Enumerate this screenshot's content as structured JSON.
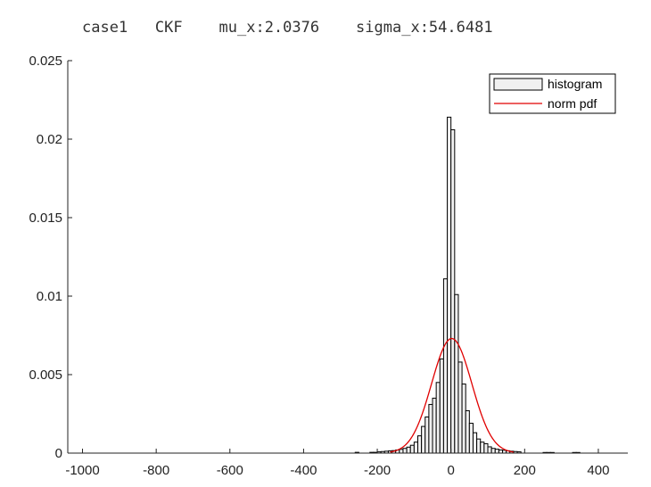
{
  "chart_data": {
    "type": "bar",
    "title": "case1   CKF    mu_x:2.0376    sigma_x:54.6481",
    "xlabel": "",
    "ylabel": "",
    "xlim": [
      -1040,
      480
    ],
    "ylim": [
      0,
      0.025
    ],
    "xticks": [
      -1000,
      -800,
      -600,
      -400,
      -200,
      0,
      200,
      400
    ],
    "xtick_labels": [
      "-1000",
      "-800",
      "-600",
      "-400",
      "-200",
      "0",
      "200",
      "400"
    ],
    "yticks": [
      0,
      0.005,
      0.01,
      0.015,
      0.02,
      0.025
    ],
    "ytick_labels": [
      "0",
      "0.005",
      "0.01",
      "0.015",
      "0.02",
      "0.025"
    ],
    "grid": false,
    "legend": {
      "position": "top-right",
      "entries": [
        "histogram",
        "norm pdf"
      ]
    },
    "bin_width": 10,
    "series": [
      {
        "name": "histogram",
        "type": "bar",
        "bin_centers": [
          -255,
          -215,
          -205,
          -195,
          -185,
          -175,
          -165,
          -155,
          -145,
          -135,
          -125,
          -115,
          -105,
          -95,
          -85,
          -75,
          -65,
          -55,
          -45,
          -35,
          -25,
          -15,
          -5,
          5,
          15,
          25,
          35,
          45,
          55,
          65,
          75,
          85,
          95,
          105,
          115,
          125,
          135,
          145,
          155,
          165,
          175,
          185,
          255,
          265,
          275,
          335,
          345
        ],
        "values": [
          5e-05,
          5e-05,
          5e-05,
          8e-05,
          0.0001,
          0.00012,
          0.00014,
          0.00016,
          0.0002,
          0.00024,
          0.0003,
          0.00038,
          0.0005,
          0.0007,
          0.0011,
          0.0017,
          0.0023,
          0.0031,
          0.0035,
          0.0045,
          0.006,
          0.0111,
          0.0214,
          0.0206,
          0.0101,
          0.0058,
          0.0044,
          0.0027,
          0.0019,
          0.0013,
          0.0009,
          0.0007,
          0.0006,
          0.0004,
          0.0003,
          0.00025,
          0.0002,
          0.00018,
          0.00015,
          0.00012,
          0.0001,
          8e-05,
          4e-05,
          4e-05,
          4e-05,
          4e-05,
          4e-05
        ],
        "color": "#f0f0f0",
        "edge_color": "#000000"
      },
      {
        "name": "norm pdf",
        "type": "line",
        "mu": 2.0376,
        "sigma": 54.6481,
        "x_range": [
          -165,
          170
        ],
        "color": "#e00000"
      }
    ]
  }
}
